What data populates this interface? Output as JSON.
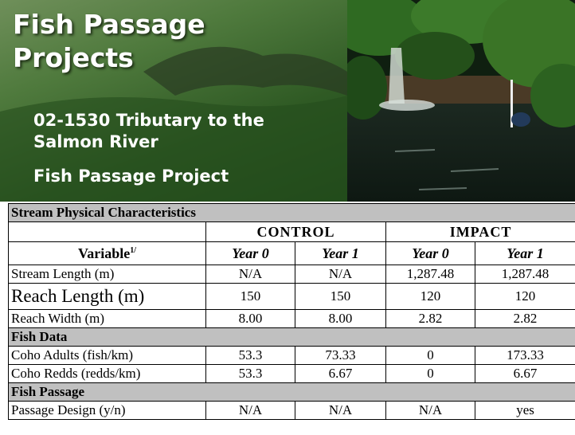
{
  "header": {
    "title": "Fish Passage Projects",
    "subtitle": "02-1530 Tributary to the Salmon River",
    "project": "Fish Passage Project"
  },
  "table": {
    "groups": [
      "CONTROL",
      "IMPACT"
    ],
    "variable_header": "Variable",
    "footnote": "1/",
    "years": [
      "Year 0",
      "Year 1",
      "Year 0",
      "Year 1"
    ],
    "sections": [
      {
        "title": "Stream Physical Characteristics",
        "rows": [
          [
            "Stream Length (m)",
            "N/A",
            "N/A",
            "1,287.48",
            "1,287.48"
          ],
          [
            "Reach Length (m)",
            "150",
            "150",
            "120",
            "120"
          ],
          [
            "Reach Width (m)",
            "8.00",
            "8.00",
            "2.82",
            "2.82"
          ]
        ]
      },
      {
        "title": "Fish Data",
        "rows": [
          [
            "Coho Adults (fish/km)",
            "53.3",
            "73.33",
            "0",
            "173.33"
          ],
          [
            "Coho Redds (redds/km)",
            "53.3",
            "6.67",
            "0",
            "6.67"
          ]
        ]
      },
      {
        "title": "Fish Passage",
        "rows": [
          [
            "Passage Design (y/n)",
            "N/A",
            "N/A",
            "N/A",
            "yes"
          ]
        ]
      }
    ]
  }
}
